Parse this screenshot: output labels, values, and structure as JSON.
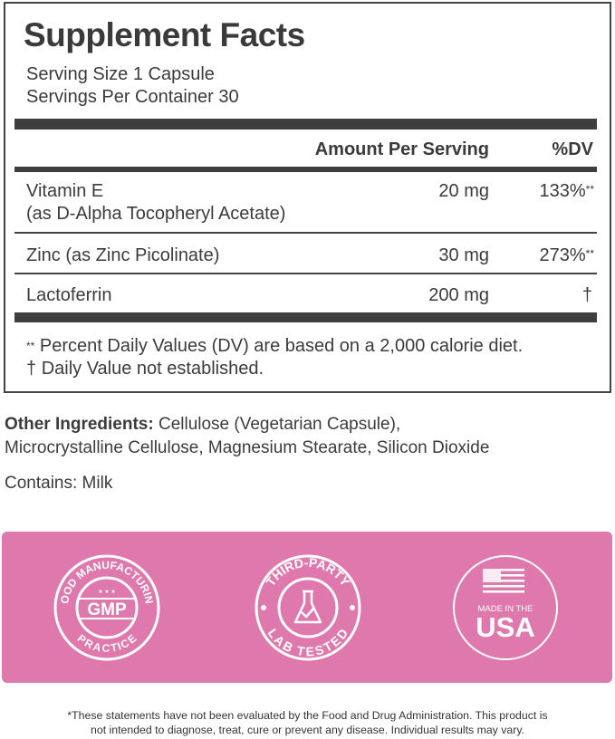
{
  "facts": {
    "title": "Supplement Facts",
    "serving_size": "Serving Size 1 Capsule",
    "servings_per_container": "Servings Per Container 30",
    "header_amount": "Amount Per Serving",
    "header_dv": "%DV",
    "rows": [
      {
        "name": "Vitamin E",
        "sub": "(as D-Alpha Tocopheryl Acetate)",
        "amount": "20 mg",
        "dv": "133%",
        "dv_mark": "**"
      },
      {
        "name": "Zinc (as Zinc Picolinate)",
        "amount": "30 mg",
        "dv": "273%",
        "dv_mark": "**"
      },
      {
        "name": "Lactoferrin",
        "amount": "200 mg",
        "dv": "†"
      }
    ],
    "footnote_1_mark": "**",
    "footnote_1": "Percent Daily Values (DV) are based on a 2,000 calorie diet.",
    "footnote_2_mark": "†",
    "footnote_2": "Daily Value not established."
  },
  "ingredients": {
    "label": "Other Ingredients:",
    "line1": "Cellulose (Vegetarian Capsule),",
    "line2": "Microcrystalline Cellulose, Magnesium Stearate, Silicon Dioxide",
    "contains": "Contains: Milk"
  },
  "badges": {
    "color": "#df79ad",
    "gmp": {
      "top": "GOOD MANUFACTURING",
      "center": "GMP",
      "bottom": "PRACTICE",
      "stars": "★ ★ ★"
    },
    "lab": {
      "top": "THIRD-PARTY",
      "bottom": "LAB TESTED",
      "icon": "flask-check-icon"
    },
    "usa": {
      "line1": "MADE IN THE",
      "line2": "USA",
      "icon": "us-flag-icon"
    }
  },
  "disclaimer": {
    "line1": "*These statements have not been evaluated by the Food and Drug Administration. This product is",
    "line2": "not intended to diagnose, treat, cure or prevent any disease. Individual results may vary."
  }
}
